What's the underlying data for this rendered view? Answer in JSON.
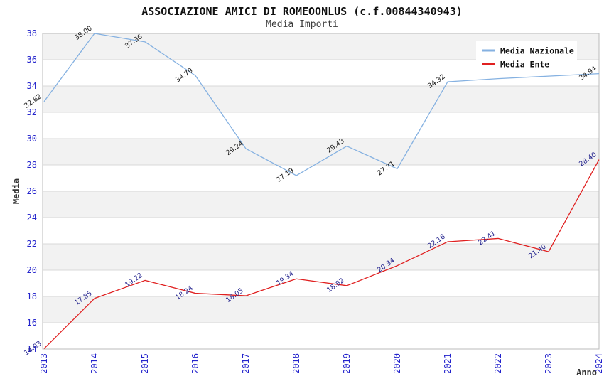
{
  "chart_data": {
    "type": "line",
    "title": "ASSOCIAZIONE AMICI DI ROMEOONLUS (c.f.00844340943)",
    "subtitle": "Media Importi",
    "xlabel": "Anno",
    "ylabel": "Media",
    "x_categories": [
      "2013",
      "2014",
      "2015",
      "2016",
      "2017",
      "2018",
      "2019",
      "2020",
      "2021",
      "2022",
      "2023",
      "2024"
    ],
    "ylim": [
      14,
      38
    ],
    "y_tick_step": 2,
    "y_ticks": [
      "14",
      "16",
      "18",
      "20",
      "22",
      "24",
      "26",
      "28",
      "30",
      "32",
      "34",
      "36",
      "38"
    ],
    "grid": "horizontal-bands-alternating",
    "legend_position": "top-right-inside",
    "legend": [
      "Media Nazionale",
      "Media Ente"
    ],
    "series": [
      {
        "name": "Media Nazionale",
        "color": "#85b1e1",
        "label_color": "#1a1a1a",
        "values": [
          32.82,
          38.0,
          37.36,
          34.79,
          29.24,
          27.19,
          29.43,
          27.71,
          34.32,
          34.56,
          34.75,
          34.94
        ],
        "labels": [
          "32.82",
          "38.00",
          "37.36",
          "34.79",
          "29.24",
          "27.19",
          "29.43",
          "27.71",
          "34.32",
          "",
          "",
          "34.94"
        ]
      },
      {
        "name": "Media Ente",
        "color": "#e02020",
        "label_color": "#26268f",
        "values": [
          14.03,
          17.85,
          19.22,
          18.24,
          18.05,
          19.34,
          18.82,
          20.34,
          22.16,
          22.41,
          21.4,
          28.4
        ],
        "labels": [
          "14.03",
          "17.85",
          "19.22",
          "18.24",
          "18.05",
          "19.34",
          "18.82",
          "20.34",
          "22.16",
          "22.41",
          "21.40",
          "28.40"
        ]
      }
    ],
    "colors": {
      "axis_tick_text": "#2323cc",
      "band_fill": "#f2f2f2",
      "grid_line": "#d8d8d8",
      "plot_border": "#bbbbbb",
      "axis_title_text": "#333333",
      "legend_text": "#111111",
      "legend_background": "#ffffff"
    }
  }
}
